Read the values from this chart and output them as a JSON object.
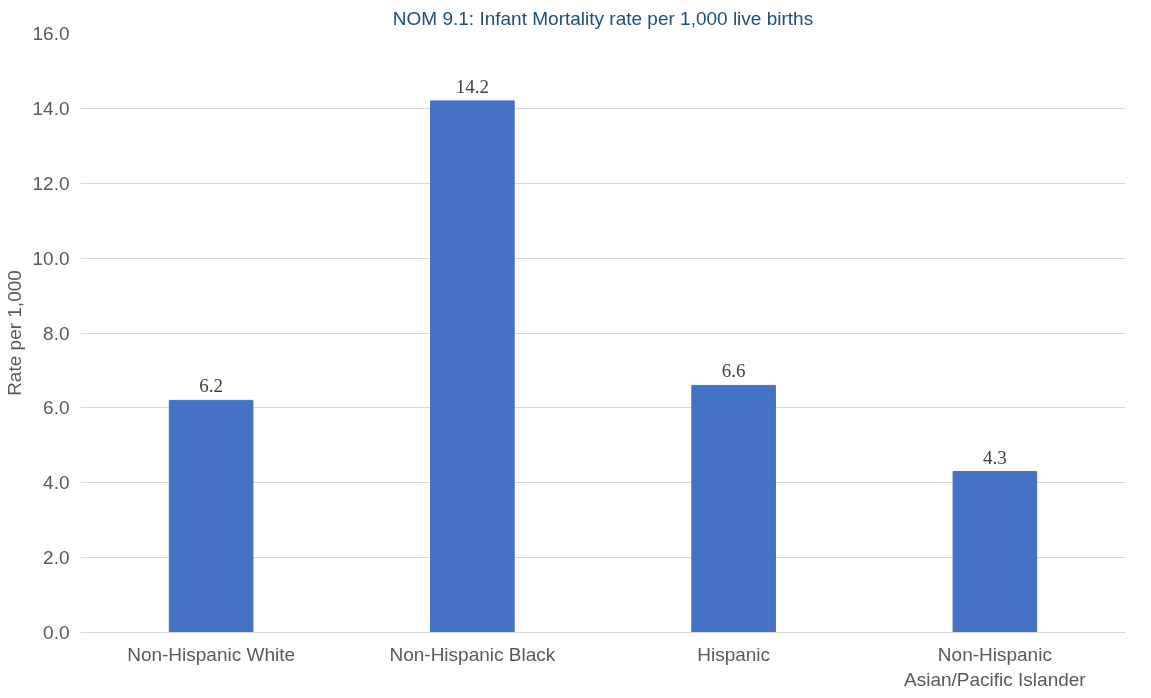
{
  "chart_data": {
    "type": "bar",
    "title": "NOM 9.1: Infant Mortality rate per 1,000 live births",
    "ylabel": "Rate per 1,000",
    "categories": [
      "Non-Hispanic White",
      "Non-Hispanic Black",
      "Hispanic",
      "Non-Hispanic Asian/Pacific Islander"
    ],
    "values": [
      6.2,
      14.2,
      6.6,
      4.3
    ],
    "color": "#4472c4",
    "ylim": [
      0,
      16
    ],
    "yticks": [
      {
        "value": 0,
        "label": "0.0"
      },
      {
        "value": 2,
        "label": "2.0"
      },
      {
        "value": 4,
        "label": "4.0"
      },
      {
        "value": 6,
        "label": "6.0"
      },
      {
        "value": 8,
        "label": "8.0"
      },
      {
        "value": 10,
        "label": "10.0"
      },
      {
        "value": 12,
        "label": "12.0"
      },
      {
        "value": 14,
        "label": "14.0"
      },
      {
        "value": 16,
        "label": "16.0"
      }
    ],
    "grid": "y",
    "data_labels": true
  }
}
